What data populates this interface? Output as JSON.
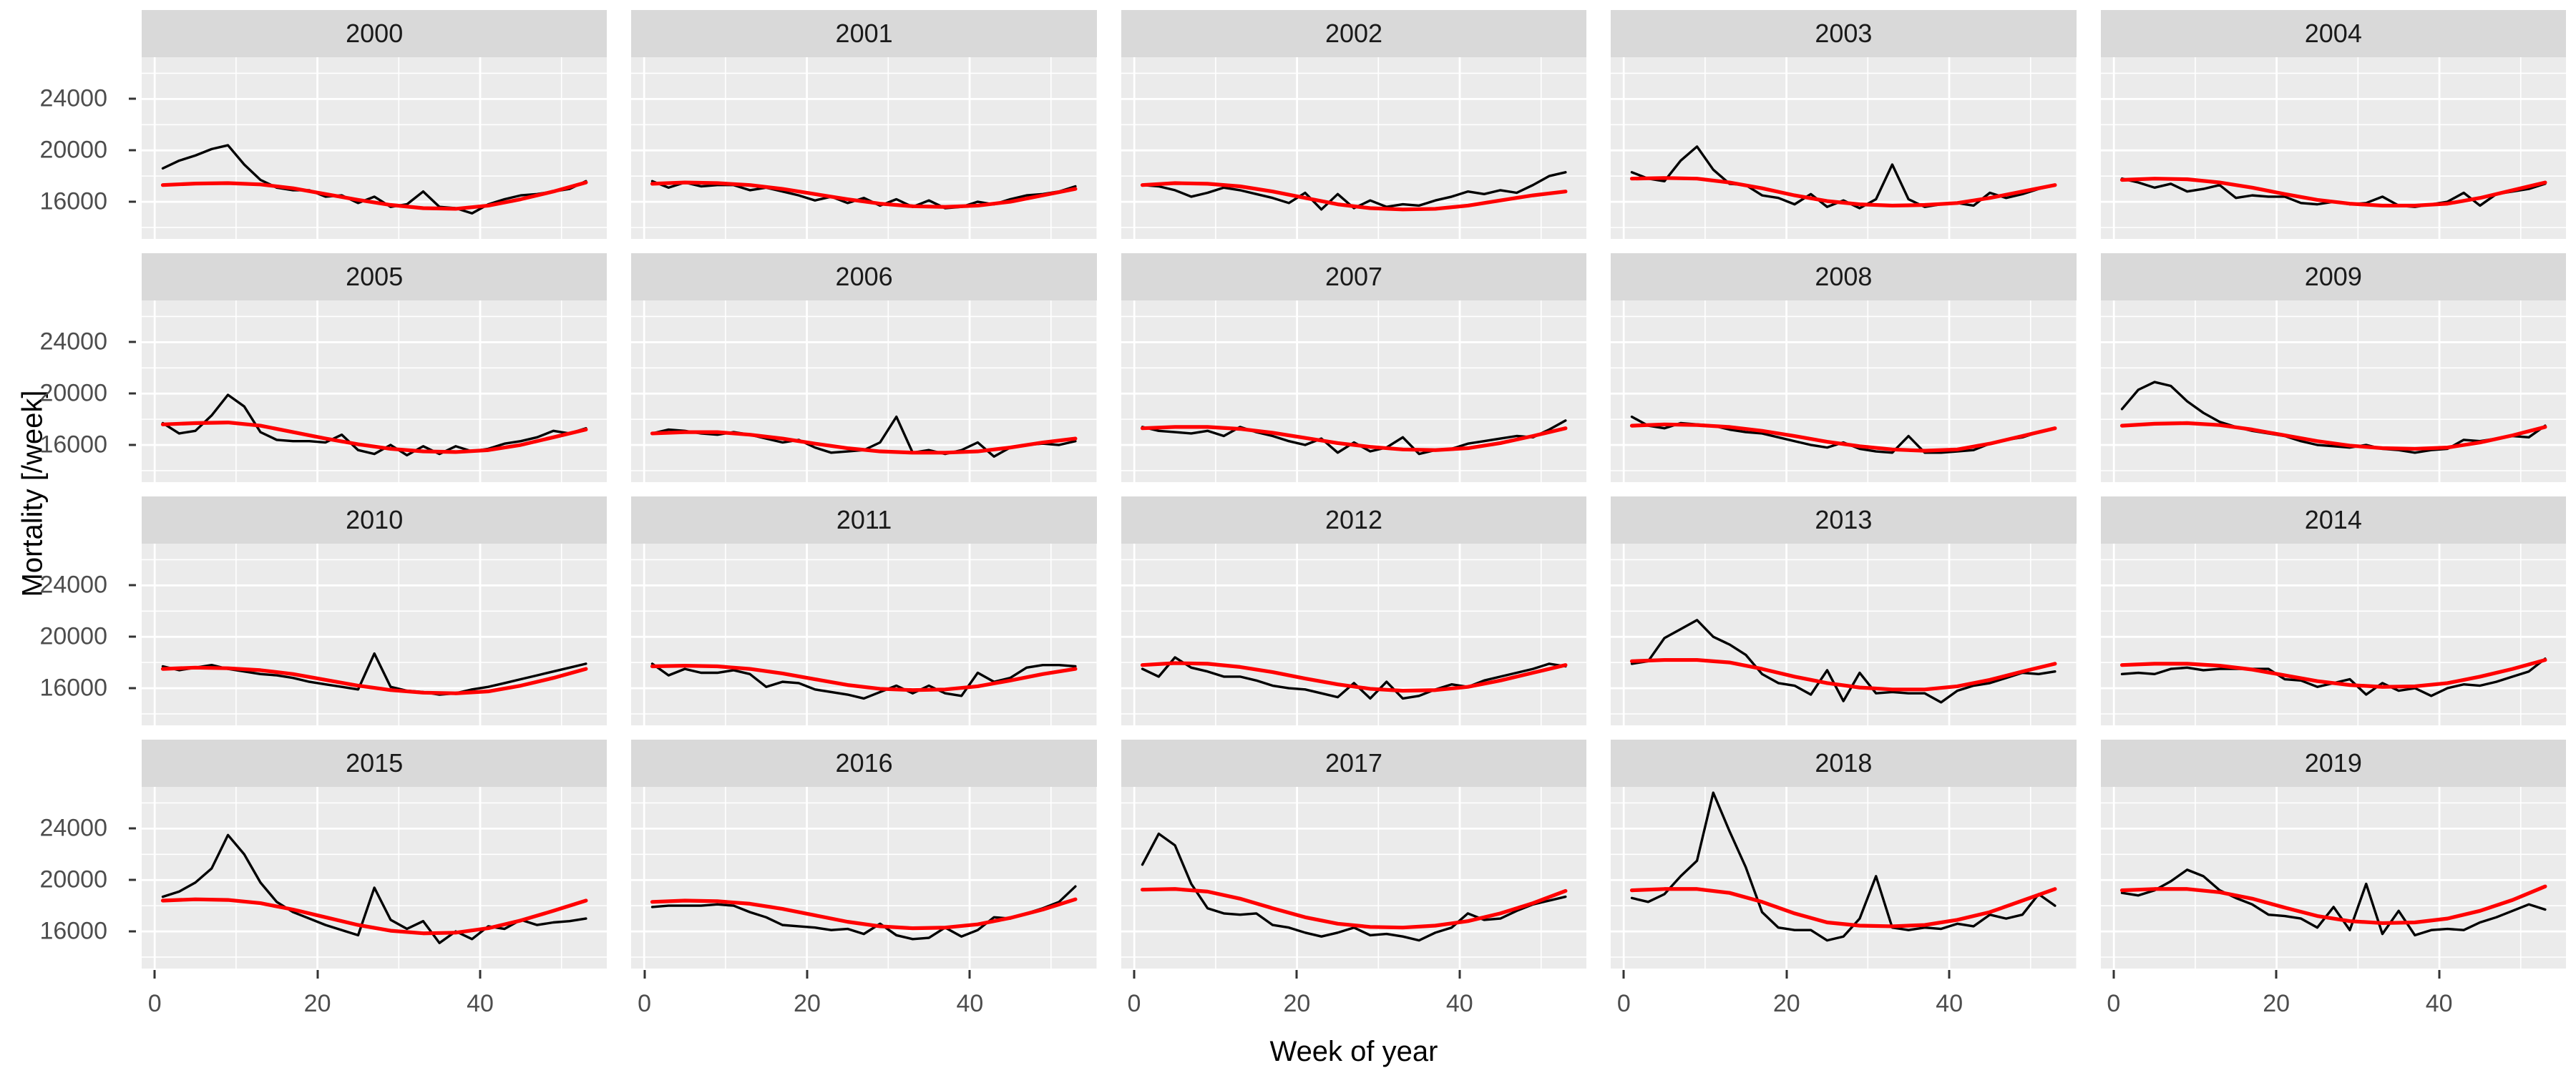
{
  "page": {
    "background": "#ffffff"
  },
  "chart_data": {
    "type": "line",
    "title": "",
    "xlabel": "Week of year",
    "ylabel": "Mortality [/week]",
    "facet_layout": {
      "rows": 4,
      "cols": 5,
      "strip_bg": "#d9d9d9",
      "panel_bg": "#ebebeb",
      "grid_color": "#ffffff"
    },
    "x_range": [
      -1.6,
      55.6
    ],
    "y_range": [
      13100,
      27250
    ],
    "x_major_ticks": [
      0,
      20,
      40
    ],
    "x_minor_ticks": [
      10,
      30,
      50
    ],
    "y_major_ticks": [
      24000,
      20000,
      16000
    ],
    "y_minor_ticks": [
      26000,
      22000,
      18000,
      14000
    ],
    "x_tick_labels": [
      "0",
      "20",
      "40"
    ],
    "y_tick_labels": [
      "24000",
      "20000",
      "16000"
    ],
    "series_colors": {
      "observed": "#000000",
      "smooth": "#ff0000"
    },
    "weeks": [
      1,
      3,
      5,
      7,
      9,
      11,
      13,
      15,
      17,
      19,
      21,
      23,
      25,
      27,
      29,
      31,
      33,
      35,
      37,
      39,
      41,
      43,
      45,
      47,
      49,
      51,
      53
    ],
    "smooth_weeks": [
      1,
      5,
      9,
      13,
      17,
      21,
      25,
      29,
      33,
      37,
      41,
      45,
      49,
      53
    ],
    "facets": [
      {
        "year": "2000",
        "observed": [
          18600,
          19200,
          19600,
          20100,
          20400,
          18900,
          17700,
          17100,
          16900,
          16900,
          16400,
          16500,
          15900,
          16400,
          15600,
          15800,
          16800,
          15600,
          15500,
          15100,
          15800,
          16200,
          16500,
          16600,
          16800,
          17000,
          17600
        ],
        "smooth": [
          17300,
          17420,
          17450,
          17350,
          17050,
          16600,
          16150,
          15750,
          15500,
          15450,
          15700,
          16200,
          16800,
          17500
        ]
      },
      {
        "year": "2001",
        "observed": [
          17600,
          17100,
          17500,
          17200,
          17300,
          17300,
          16900,
          17100,
          16800,
          16500,
          16100,
          16400,
          15900,
          16300,
          15700,
          16200,
          15600,
          16100,
          15500,
          15600,
          16000,
          15800,
          16200,
          16500,
          16600,
          16800,
          17200
        ],
        "smooth": [
          17400,
          17500,
          17450,
          17300,
          17000,
          16600,
          16200,
          15850,
          15650,
          15600,
          15700,
          16000,
          16500,
          17000
        ]
      },
      {
        "year": "2002",
        "observed": [
          17300,
          17200,
          16900,
          16400,
          16700,
          17100,
          16900,
          16600,
          16300,
          15900,
          16700,
          15400,
          16600,
          15500,
          16100,
          15600,
          15800,
          15700,
          16100,
          16400,
          16800,
          16600,
          16900,
          16700,
          17300,
          18000,
          18300
        ],
        "smooth": [
          17300,
          17450,
          17400,
          17200,
          16800,
          16300,
          15800,
          15500,
          15400,
          15450,
          15700,
          16100,
          16500,
          16800
        ]
      },
      {
        "year": "2003",
        "observed": [
          18300,
          17800,
          17600,
          19200,
          20300,
          18500,
          17400,
          17300,
          16500,
          16300,
          15800,
          16600,
          15600,
          16100,
          15500,
          16200,
          18900,
          16200,
          15600,
          15800,
          15900,
          15700,
          16700,
          16300,
          16600,
          17000,
          17300
        ],
        "smooth": [
          17800,
          17850,
          17800,
          17500,
          17050,
          16500,
          16050,
          15800,
          15700,
          15750,
          15900,
          16300,
          16800,
          17300
        ]
      },
      {
        "year": "2004",
        "observed": [
          17800,
          17500,
          17100,
          17400,
          16800,
          17000,
          17300,
          16300,
          16500,
          16400,
          16400,
          15900,
          15800,
          16000,
          15800,
          15900,
          16400,
          15700,
          15600,
          15800,
          16000,
          16700,
          15700,
          16600,
          16800,
          17000,
          17400
        ],
        "smooth": [
          17700,
          17800,
          17750,
          17500,
          17100,
          16600,
          16150,
          15850,
          15700,
          15700,
          15850,
          16300,
          16900,
          17500
        ]
      },
      {
        "year": "2005",
        "observed": [
          17700,
          16900,
          17100,
          18300,
          19900,
          19000,
          17000,
          16400,
          16300,
          16300,
          16200,
          16800,
          15600,
          15300,
          16000,
          15200,
          15900,
          15300,
          15900,
          15500,
          15700,
          16100,
          16300,
          16600,
          17100,
          16900,
          17300
        ],
        "smooth": [
          17600,
          17700,
          17750,
          17500,
          17000,
          16500,
          16050,
          15700,
          15500,
          15450,
          15600,
          16000,
          16600,
          17200
        ]
      },
      {
        "year": "2006",
        "observed": [
          16900,
          17200,
          17100,
          16900,
          16800,
          17000,
          16800,
          16500,
          16200,
          16400,
          15800,
          15400,
          15500,
          15600,
          16200,
          18200,
          15400,
          15600,
          15300,
          15600,
          16200,
          15100,
          15800,
          16000,
          16100,
          16000,
          16300
        ],
        "smooth": [
          16900,
          17000,
          17000,
          16800,
          16500,
          16100,
          15750,
          15500,
          15400,
          15400,
          15500,
          15800,
          16200,
          16500
        ]
      },
      {
        "year": "2007",
        "observed": [
          17400,
          17100,
          17000,
          16900,
          17100,
          16700,
          17400,
          17000,
          16700,
          16300,
          16000,
          16500,
          15400,
          16200,
          15500,
          15800,
          16600,
          15300,
          15600,
          15700,
          16100,
          16300,
          16500,
          16700,
          16600,
          17200,
          17900
        ],
        "smooth": [
          17300,
          17400,
          17400,
          17250,
          16950,
          16550,
          16150,
          15850,
          15650,
          15600,
          15750,
          16150,
          16700,
          17300
        ]
      },
      {
        "year": "2008",
        "observed": [
          18200,
          17500,
          17300,
          17700,
          17600,
          17500,
          17200,
          17000,
          16900,
          16600,
          16300,
          16000,
          15800,
          16200,
          15700,
          15500,
          15400,
          16700,
          15400,
          15400,
          15500,
          15600,
          16100,
          16400,
          16600,
          17000,
          17300
        ],
        "smooth": [
          17500,
          17600,
          17550,
          17400,
          17100,
          16700,
          16250,
          15900,
          15650,
          15550,
          15650,
          16100,
          16700,
          17300
        ]
      },
      {
        "year": "2009",
        "observed": [
          18800,
          20300,
          20900,
          20600,
          19400,
          18500,
          17800,
          17400,
          17100,
          16900,
          16700,
          16300,
          16000,
          15900,
          15800,
          16000,
          15700,
          15600,
          15400,
          15600,
          15700,
          16400,
          16300,
          16500,
          16700,
          16600,
          17500
        ],
        "smooth": [
          17500,
          17650,
          17700,
          17550,
          17200,
          16750,
          16300,
          15950,
          15750,
          15700,
          15800,
          16200,
          16750,
          17400
        ]
      },
      {
        "year": "2010",
        "observed": [
          17700,
          17400,
          17600,
          17800,
          17500,
          17300,
          17100,
          17000,
          16800,
          16500,
          16300,
          16100,
          15900,
          18700,
          16100,
          15800,
          15700,
          15500,
          15600,
          15900,
          16100,
          16400,
          16700,
          17000,
          17300,
          17600,
          17900
        ],
        "smooth": [
          17500,
          17600,
          17550,
          17400,
          17100,
          16650,
          16200,
          15850,
          15650,
          15600,
          15750,
          16200,
          16800,
          17500
        ]
      },
      {
        "year": "2011",
        "observed": [
          17900,
          17000,
          17500,
          17200,
          17200,
          17400,
          17100,
          16100,
          16500,
          16400,
          15900,
          15700,
          15500,
          15200,
          15700,
          16200,
          15600,
          16200,
          15600,
          15400,
          17200,
          16500,
          16800,
          17600,
          17800,
          17800,
          17700
        ],
        "smooth": [
          17700,
          17750,
          17700,
          17500,
          17150,
          16700,
          16250,
          15950,
          15850,
          15900,
          16150,
          16600,
          17100,
          17500
        ]
      },
      {
        "year": "2012",
        "observed": [
          17500,
          16900,
          18400,
          17600,
          17300,
          16900,
          16900,
          16600,
          16200,
          16000,
          15900,
          15600,
          15300,
          16400,
          15200,
          16500,
          15200,
          15400,
          15900,
          16300,
          16100,
          16600,
          16900,
          17200,
          17500,
          17900,
          17700
        ],
        "smooth": [
          17800,
          17950,
          17900,
          17650,
          17250,
          16750,
          16300,
          15950,
          15800,
          15850,
          16100,
          16600,
          17200,
          17800
        ]
      },
      {
        "year": "2013",
        "observed": [
          17900,
          18100,
          19900,
          20600,
          21300,
          20000,
          19400,
          18600,
          17100,
          16400,
          16200,
          15500,
          17400,
          15000,
          17200,
          15600,
          15700,
          15600,
          15600,
          14900,
          15800,
          16200,
          16400,
          16800,
          17200,
          17100,
          17300
        ],
        "smooth": [
          18100,
          18200,
          18200,
          18000,
          17500,
          16900,
          16400,
          16050,
          15900,
          15900,
          16150,
          16650,
          17300,
          17900
        ]
      },
      {
        "year": "2014",
        "observed": [
          17100,
          17200,
          17100,
          17500,
          17600,
          17400,
          17500,
          17500,
          17500,
          17500,
          16700,
          16600,
          16100,
          16400,
          16700,
          15500,
          16400,
          15800,
          16000,
          15400,
          16000,
          16300,
          16200,
          16500,
          16900,
          17300,
          18300
        ],
        "smooth": [
          17800,
          17900,
          17900,
          17750,
          17450,
          17000,
          16550,
          16250,
          16100,
          16150,
          16400,
          16900,
          17500,
          18200
        ]
      },
      {
        "year": "2015",
        "observed": [
          18700,
          19100,
          19800,
          20900,
          23500,
          22000,
          19800,
          18300,
          17500,
          17000,
          16500,
          16100,
          15700,
          19400,
          16900,
          16200,
          16800,
          15100,
          16000,
          15400,
          16400,
          16200,
          16900,
          16500,
          16700,
          16800,
          17000
        ],
        "smooth": [
          18400,
          18500,
          18450,
          18200,
          17700,
          17100,
          16500,
          16050,
          15850,
          15900,
          16250,
          16850,
          17600,
          18400
        ]
      },
      {
        "year": "2016",
        "observed": [
          17900,
          18000,
          18000,
          18000,
          18100,
          18000,
          17500,
          17100,
          16500,
          16400,
          16300,
          16100,
          16200,
          15800,
          16600,
          15700,
          15400,
          15500,
          16300,
          15600,
          16100,
          17100,
          17000,
          17400,
          17800,
          18300,
          19500
        ],
        "smooth": [
          18300,
          18400,
          18350,
          18150,
          17750,
          17250,
          16750,
          16400,
          16250,
          16300,
          16550,
          17050,
          17700,
          18500
        ]
      },
      {
        "year": "2017",
        "observed": [
          21200,
          23600,
          22700,
          19700,
          17800,
          17400,
          17300,
          17400,
          16500,
          16300,
          15900,
          15600,
          15900,
          16300,
          15700,
          15800,
          15600,
          15300,
          15900,
          16300,
          17400,
          16900,
          17000,
          17600,
          18100,
          18400,
          18700
        ],
        "smooth": [
          19250,
          19300,
          19100,
          18550,
          17800,
          17100,
          16600,
          16350,
          16300,
          16450,
          16800,
          17400,
          18200,
          19150
        ]
      },
      {
        "year": "2018",
        "observed": [
          18600,
          18300,
          18900,
          20300,
          21500,
          26800,
          23800,
          21000,
          17500,
          16300,
          16100,
          16100,
          15300,
          15600,
          17000,
          20300,
          16300,
          16100,
          16300,
          16200,
          16600,
          16400,
          17300,
          17000,
          17300,
          18900,
          18000
        ],
        "smooth": [
          19200,
          19300,
          19300,
          19000,
          18300,
          17400,
          16700,
          16450,
          16400,
          16500,
          16900,
          17500,
          18400,
          19300
        ]
      },
      {
        "year": "2019",
        "observed": [
          19000,
          18800,
          19200,
          19900,
          20800,
          20300,
          19200,
          18600,
          18100,
          17300,
          17200,
          17000,
          16300,
          17900,
          16100,
          19700,
          15800,
          17600,
          15700,
          16100,
          16200,
          16100,
          16700,
          17100,
          17600,
          18100,
          17700
        ],
        "smooth": [
          19200,
          19300,
          19300,
          19050,
          18550,
          17850,
          17200,
          16800,
          16650,
          16700,
          17000,
          17600,
          18450,
          19500
        ]
      }
    ]
  }
}
